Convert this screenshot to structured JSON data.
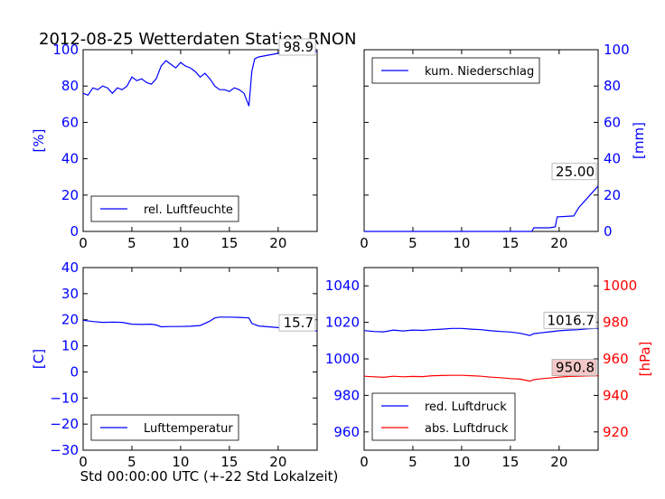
{
  "title": "2012-08-25 Wetterdaten Station RNON",
  "colors": {
    "blue": "#0000ff",
    "red": "#ff0000"
  },
  "chart_data": [
    {
      "type": "line",
      "panel": "top-left",
      "xlim": [
        0,
        24
      ],
      "ylim": [
        0,
        100
      ],
      "x_ticks": [
        "0",
        "5",
        "10",
        "15",
        "20"
      ],
      "y_ticks": [
        "0",
        "20",
        "40",
        "60",
        "80",
        "100"
      ],
      "ylabel": "[%]",
      "legend": "lower-left",
      "series": [
        {
          "name": "rel. Luftfeuchte",
          "color": "#0000ff",
          "x": [
            0,
            0.5,
            1,
            1.5,
            2,
            2.5,
            3,
            3.5,
            4,
            4.5,
            5,
            5.5,
            6,
            6.5,
            7,
            7.5,
            8,
            8.5,
            9,
            9.5,
            10,
            10.5,
            11,
            11.5,
            12,
            12.5,
            13,
            13.5,
            14,
            14.5,
            15,
            15.5,
            16,
            16.5,
            17,
            17.3,
            17.6,
            18,
            19,
            20,
            21,
            22,
            23,
            24
          ],
          "y": [
            76,
            75,
            79,
            78,
            80,
            79,
            76,
            79,
            78,
            80,
            85,
            83,
            84,
            82,
            81,
            84,
            91,
            94,
            92,
            90,
            93,
            91,
            90,
            88,
            85,
            87,
            84,
            80,
            78,
            78,
            77,
            79,
            78,
            76,
            69,
            88,
            95,
            96,
            97,
            98,
            99,
            99,
            99,
            99
          ]
        }
      ],
      "annotations": [
        "98.9"
      ]
    },
    {
      "type": "line",
      "panel": "top-right",
      "xlim": [
        0,
        24
      ],
      "ylim": [
        0,
        100
      ],
      "x_ticks": [
        "0",
        "5",
        "10",
        "15",
        "20"
      ],
      "y_ticks": [
        "0",
        "20",
        "40",
        "60",
        "80",
        "100"
      ],
      "ylabel": "[mm]",
      "legend": "upper-left",
      "series": [
        {
          "name": "kum. Niederschlag",
          "color": "#0000ff",
          "x": [
            0,
            17.2,
            17.4,
            19,
            19.6,
            19.8,
            21.5,
            22,
            23,
            23.5,
            24
          ],
          "y": [
            0,
            0,
            2,
            2,
            2.5,
            8,
            8.5,
            13,
            19,
            22,
            25
          ]
        }
      ],
      "annotations": [
        "25.00"
      ]
    },
    {
      "type": "line",
      "panel": "bottom-left",
      "xlim": [
        0,
        24
      ],
      "ylim": [
        -30,
        40
      ],
      "x_ticks": [
        "0",
        "5",
        "10",
        "15",
        "20"
      ],
      "y_ticks": [
        "−30",
        "−20",
        "−10",
        "0",
        "10",
        "20",
        "30",
        "40"
      ],
      "ylabel": "[C]",
      "xlabel": "Std 00:00:00 UTC (+-22 Std Lokalzeit)",
      "legend": "lower-left",
      "series": [
        {
          "name": "Lufttemperatur",
          "color": "#0000ff",
          "x": [
            0,
            1,
            2,
            3,
            4,
            5,
            6,
            7,
            7.5,
            8,
            9,
            10,
            11,
            12,
            13,
            13.5,
            14,
            15,
            16,
            17,
            17.3,
            18,
            19,
            20,
            21,
            22,
            23,
            24
          ],
          "y": [
            19.8,
            19.3,
            19.0,
            19.1,
            19.0,
            18.3,
            18.2,
            18.3,
            18.0,
            17.3,
            17.4,
            17.4,
            17.5,
            17.8,
            19.5,
            20.7,
            21.0,
            21.0,
            20.9,
            20.7,
            18.6,
            17.6,
            17.3,
            17.0,
            16.6,
            16.2,
            15.9,
            15.7
          ]
        }
      ],
      "annotations": [
        "15.7"
      ]
    },
    {
      "type": "line",
      "panel": "bottom-right",
      "xlim": [
        0,
        24
      ],
      "ylim": [
        950,
        1050
      ],
      "ylim_right": [
        910,
        1010
      ],
      "x_ticks": [
        "0",
        "5",
        "10",
        "15",
        "20"
      ],
      "y_ticks": [
        "960",
        "980",
        "1000",
        "1020",
        "1040"
      ],
      "y_ticks_right": [
        "920",
        "940",
        "960",
        "980",
        "1000"
      ],
      "ylabel_right": "[hPa]",
      "legend": "lower-left",
      "series": [
        {
          "name": "red. Luftdruck",
          "color": "#0000ff",
          "axis": "left",
          "x": [
            0,
            1,
            2,
            3,
            4,
            5,
            6,
            7,
            8,
            9,
            10,
            11,
            12,
            13,
            14,
            15,
            16,
            17,
            17.4,
            18,
            19,
            20,
            21,
            22,
            23,
            24
          ],
          "y": [
            1015.5,
            1015.0,
            1014.8,
            1015.8,
            1015.3,
            1015.8,
            1015.6,
            1016.0,
            1016.3,
            1016.7,
            1016.7,
            1016.3,
            1016.0,
            1015.4,
            1015.0,
            1014.7,
            1014.0,
            1012.8,
            1013.8,
            1014.2,
            1014.8,
            1015.4,
            1015.8,
            1016.0,
            1016.5,
            1016.7
          ]
        },
        {
          "name": "abs. Luftdruck",
          "color": "#ff0000",
          "axis": "right",
          "x": [
            0,
            1,
            2,
            3,
            4,
            5,
            6,
            7,
            8,
            9,
            10,
            11,
            12,
            13,
            14,
            15,
            16,
            17,
            17.4,
            18,
            19,
            20,
            21,
            22,
            23,
            24
          ],
          "y": [
            950.5,
            950.2,
            949.9,
            950.5,
            950.2,
            950.4,
            950.3,
            950.8,
            950.9,
            951.0,
            951.0,
            950.8,
            950.5,
            950.0,
            949.7,
            949.2,
            948.9,
            947.8,
            948.6,
            949.0,
            949.5,
            950.0,
            950.4,
            950.5,
            950.7,
            950.8
          ]
        }
      ],
      "annotations": [
        "1016.7",
        "950.8"
      ]
    }
  ]
}
